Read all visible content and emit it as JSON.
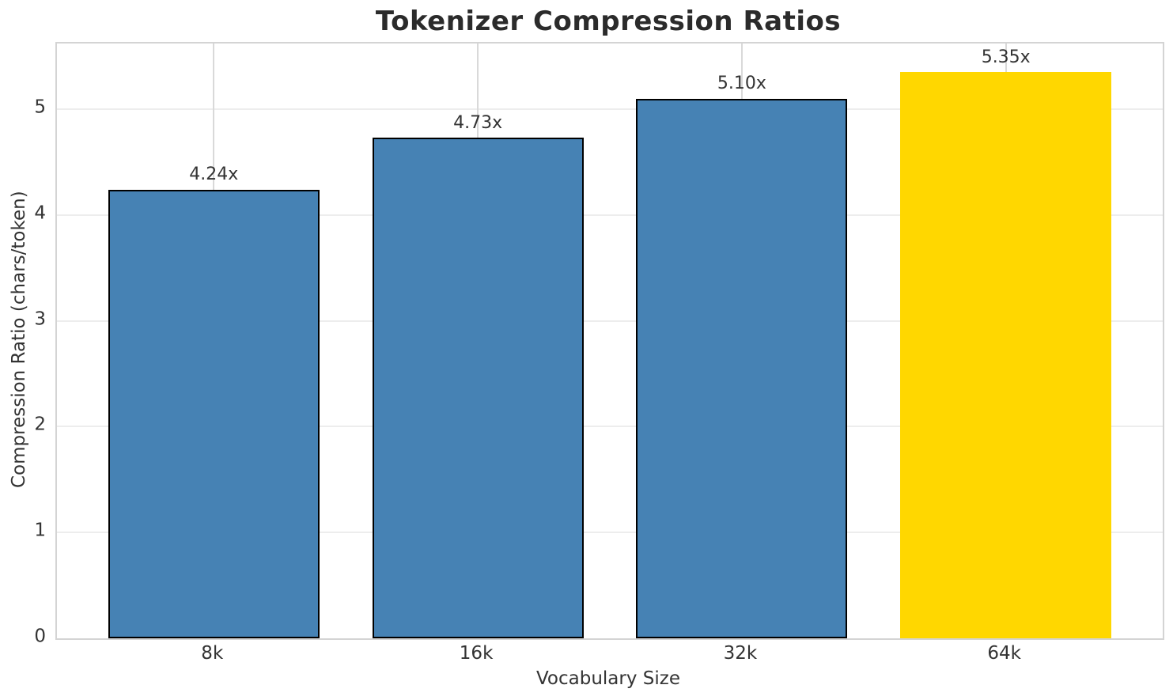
{
  "chart_data": {
    "type": "bar",
    "title": "Tokenizer Compression Ratios",
    "xlabel": "Vocabulary Size",
    "ylabel": "Compression Ratio (chars/token)",
    "categories": [
      "8k",
      "16k",
      "32k",
      "64k"
    ],
    "values": [
      4.24,
      4.73,
      5.1,
      5.35
    ],
    "bar_labels": [
      "4.24x",
      "4.73x",
      "5.10x",
      "5.35x"
    ],
    "bar_colors": [
      "#4682b4",
      "#4682b4",
      "#4682b4",
      "#ffd700"
    ],
    "bar_edge_colors": [
      "#000000",
      "#000000",
      "#000000",
      "none"
    ],
    "highlight_index": 3,
    "bar_width_fraction": 0.8,
    "yticks": [
      0,
      1,
      2,
      3,
      4,
      5
    ],
    "ylim": [
      0,
      5.62
    ],
    "grid": true,
    "legend": false,
    "colors": {
      "bar_default": "#4682b4",
      "bar_highlight": "#ffd700",
      "bar_edge": "#000000",
      "grid_vertical": "#d9d9d9",
      "grid_horizontal": "#ededed",
      "spine": "#d4d4d4",
      "background": "#ffffff",
      "title_text": "#2b2b2b",
      "tick_text": "#333333"
    }
  }
}
